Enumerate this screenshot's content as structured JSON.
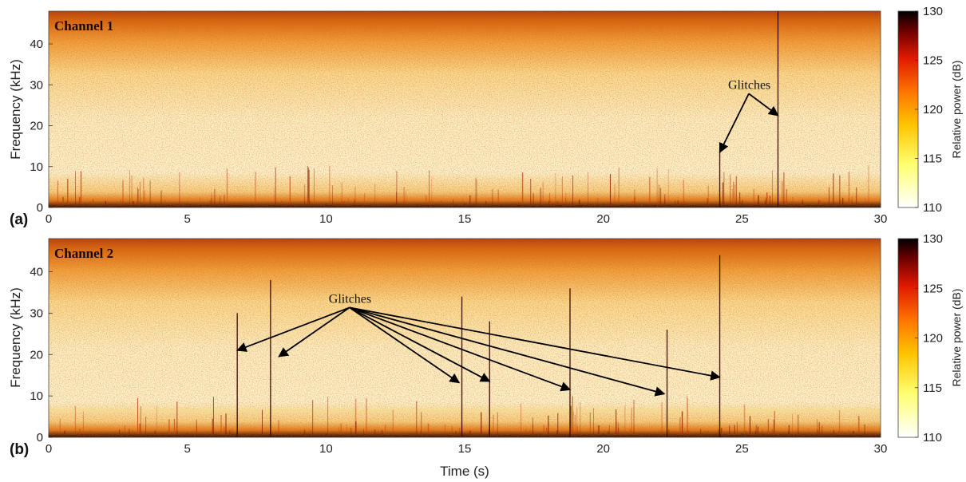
{
  "chart_data": [
    {
      "type": "heatmap",
      "panel_label": "(a)",
      "channel_label": "Channel 1",
      "xlabel": "",
      "ylabel": "Frequency (kHz)",
      "xlim": [
        0,
        30
      ],
      "ylim": [
        0,
        48
      ],
      "x_ticks": [
        0,
        5,
        10,
        15,
        20,
        25,
        30
      ],
      "y_ticks": [
        0,
        10,
        20,
        30,
        40
      ],
      "colorbar": {
        "label": "Relative power (dB)",
        "range": [
          110,
          130
        ],
        "ticks": [
          110,
          115,
          120,
          125,
          130
        ]
      },
      "annotation": {
        "text": "Glitches",
        "text_at": [
          24.5,
          29
        ],
        "targets": [
          [
            24.2,
            13.5
          ],
          [
            26.3,
            22.5
          ]
        ]
      },
      "glitch_lines": [
        {
          "t": 24.2,
          "f_max": 14
        },
        {
          "t": 26.3,
          "f_max": 48
        }
      ]
    },
    {
      "type": "heatmap",
      "panel_label": "(b)",
      "channel_label": "Channel 2",
      "xlabel": "Time (s)",
      "ylabel": "Frequency (kHz)",
      "xlim": [
        0,
        30
      ],
      "ylim": [
        0,
        48
      ],
      "x_ticks": [
        0,
        5,
        10,
        15,
        20,
        25,
        30
      ],
      "y_ticks": [
        0,
        10,
        20,
        30,
        40
      ],
      "colorbar": {
        "label": "Relative power (dB)",
        "range": [
          110,
          130
        ],
        "ticks": [
          110,
          115,
          120,
          125,
          130
        ]
      },
      "annotation": {
        "text": "Glitches",
        "text_at": [
          10.1,
          32.5
        ],
        "targets": [
          [
            6.8,
            21
          ],
          [
            8.3,
            19.5
          ],
          [
            14.8,
            13.2
          ],
          [
            15.9,
            13.5
          ],
          [
            18.8,
            11.5
          ],
          [
            22.2,
            10.5
          ],
          [
            24.2,
            14.5
          ]
        ]
      },
      "glitch_lines": [
        {
          "t": 6.8,
          "f_max": 30
        },
        {
          "t": 8.0,
          "f_max": 38
        },
        {
          "t": 14.9,
          "f_max": 34
        },
        {
          "t": 15.9,
          "f_max": 28
        },
        {
          "t": 18.8,
          "f_max": 36
        },
        {
          "t": 22.3,
          "f_max": 26
        },
        {
          "t": 24.2,
          "f_max": 44
        }
      ]
    }
  ]
}
